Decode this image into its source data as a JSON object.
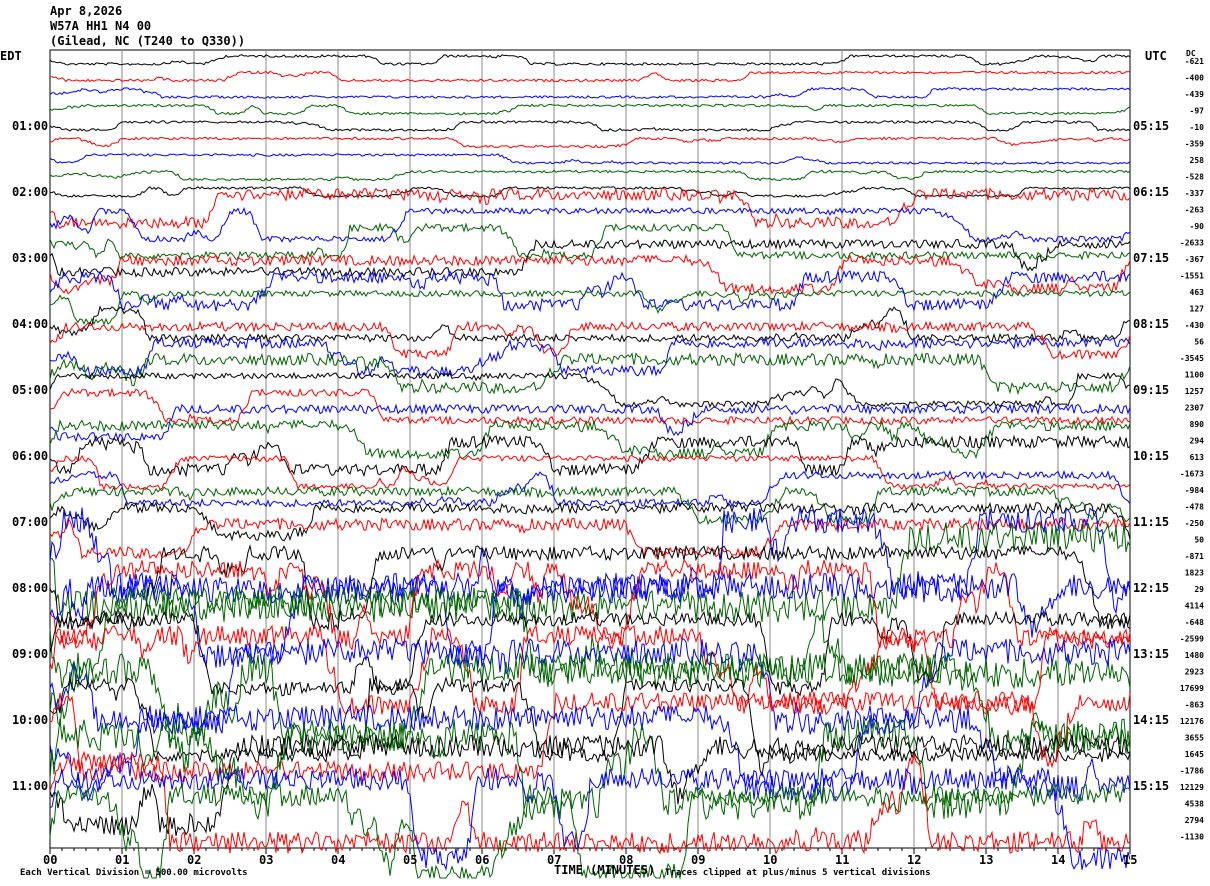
{
  "header": {
    "date": "Apr 8,2026",
    "station": "W57A HH1 N4 00",
    "location": "(Gilead, NC (T240 to Q330))"
  },
  "chart_data": {
    "type": "line",
    "left_axis_label": "EDT",
    "right_axis_label": "UTC",
    "dc_label": "DC",
    "left_hour_labels": [
      "01:00",
      "02:00",
      "03:00",
      "04:00",
      "05:00",
      "06:00",
      "07:00",
      "08:00",
      "09:00",
      "10:00",
      "11:00"
    ],
    "right_hour_labels": [
      "05:15",
      "06:15",
      "07:15",
      "08:15",
      "09:15",
      "10:15",
      "11:15",
      "12:15",
      "13:15",
      "14:15",
      "15:15"
    ],
    "dc_offsets": [
      -621,
      -400,
      -439,
      -97,
      -10,
      -359,
      258,
      -528,
      -337,
      -263,
      -90,
      -2633,
      -367,
      -1551,
      463,
      127,
      -430,
      56,
      -3545,
      1100,
      1257,
      2307,
      890,
      294,
      613,
      -1673,
      -984,
      -478,
      -250,
      50,
      -871,
      1823,
      29,
      4114,
      -648,
      -2599,
      1480,
      2923,
      17699,
      -863,
      12176,
      3655,
      1645,
      -1786,
      12129,
      4538,
      2794,
      -1130
    ],
    "trace_colors": [
      "#000000",
      "#ff0000",
      "#0000ff",
      "#006400"
    ],
    "traces_per_hour": 4,
    "x_ticks": [
      "00",
      "01",
      "02",
      "03",
      "04",
      "05",
      "06",
      "07",
      "08",
      "09",
      "10",
      "11",
      "12",
      "13",
      "14",
      "15"
    ],
    "xlabel": "TIME (MINUTES)",
    "xlim": [
      0,
      15
    ],
    "grid": true,
    "scale_note": "Each Vertical Division =  500.00 microvolts",
    "clip_note": "Traces clipped at plus/minus 5 vertical divisions"
  }
}
